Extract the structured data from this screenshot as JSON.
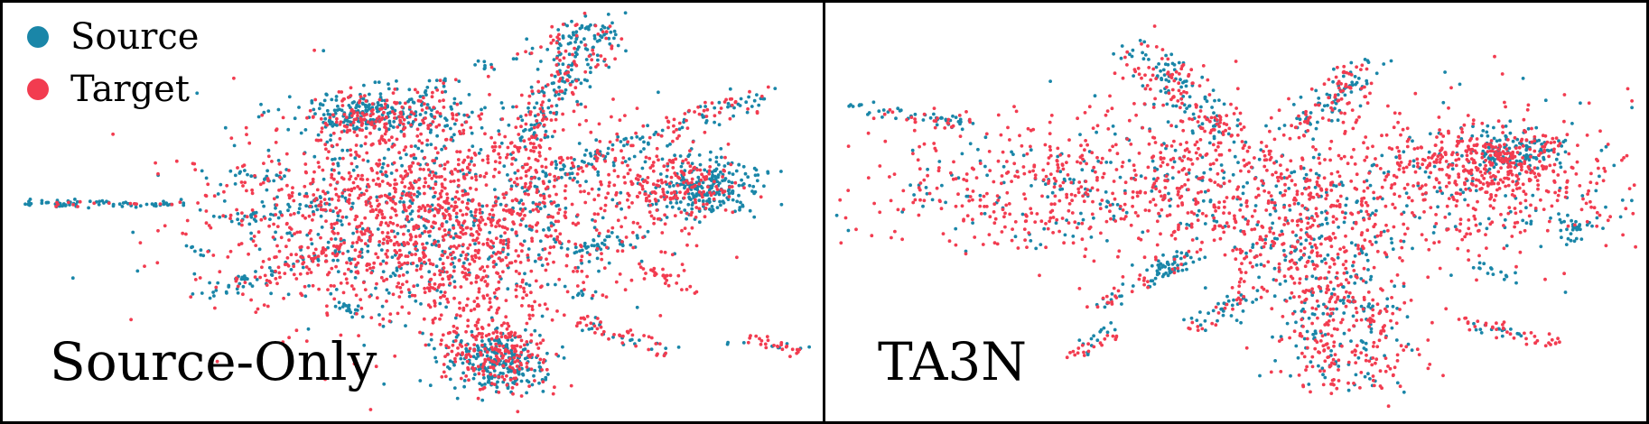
{
  "legend": [
    {
      "label": "Source",
      "color": "#1a86a8"
    },
    {
      "label": "Target",
      "color": "#f23c50"
    }
  ],
  "chart_data": [
    {
      "type": "scatter",
      "title": "Source-Only",
      "xlabel": "",
      "ylabel": "",
      "grid": false,
      "legend_placement": "top-left",
      "series": [
        {
          "name": "Source",
          "color": "#1a86a8"
        },
        {
          "name": "Target",
          "color": "#f23c50"
        }
      ],
      "clusters": [
        {
          "series": "Target",
          "shape": "ellipse",
          "cx": 0.52,
          "cy": 0.52,
          "rx": 0.25,
          "ry": 0.24,
          "n": 1300
        },
        {
          "series": "Source",
          "shape": "ellipse",
          "cx": 0.52,
          "cy": 0.52,
          "rx": 0.25,
          "ry": 0.24,
          "n": 500
        },
        {
          "series": "Source",
          "shape": "arm",
          "x1": 0.38,
          "y1": 0.3,
          "x2": 0.72,
          "y2": 0.05,
          "w": 0.01,
          "n": 60
        },
        {
          "series": "Target",
          "shape": "arm",
          "x1": 0.4,
          "y1": 0.3,
          "x2": 0.71,
          "y2": 0.06,
          "w": 0.006,
          "n": 20
        },
        {
          "series": "Source",
          "shape": "arm",
          "x1": 0.64,
          "y1": 0.32,
          "x2": 0.73,
          "y2": 0.05,
          "w": 0.018,
          "n": 150
        },
        {
          "series": "Target",
          "shape": "arm",
          "x1": 0.62,
          "y1": 0.38,
          "x2": 0.72,
          "y2": 0.06,
          "w": 0.02,
          "n": 120
        },
        {
          "series": "Source",
          "shape": "arm",
          "x1": 0.62,
          "y1": 0.45,
          "x2": 0.92,
          "y2": 0.22,
          "w": 0.015,
          "n": 110
        },
        {
          "series": "Target",
          "shape": "arm",
          "x1": 0.6,
          "y1": 0.47,
          "x2": 0.92,
          "y2": 0.22,
          "w": 0.018,
          "n": 90
        },
        {
          "series": "Source",
          "shape": "ellipse",
          "cx": 0.86,
          "cy": 0.44,
          "rx": 0.07,
          "ry": 0.07,
          "n": 250
        },
        {
          "series": "Target",
          "shape": "ellipse",
          "cx": 0.82,
          "cy": 0.44,
          "rx": 0.08,
          "ry": 0.08,
          "n": 180
        },
        {
          "series": "Source",
          "shape": "ellipse",
          "cx": 0.46,
          "cy": 0.26,
          "rx": 0.11,
          "ry": 0.06,
          "n": 220
        },
        {
          "series": "Target",
          "shape": "ellipse",
          "cx": 0.47,
          "cy": 0.27,
          "rx": 0.1,
          "ry": 0.06,
          "n": 150
        },
        {
          "series": "Source",
          "shape": "ellipse",
          "cx": 0.6,
          "cy": 0.86,
          "rx": 0.06,
          "ry": 0.07,
          "n": 240
        },
        {
          "series": "Target",
          "shape": "ellipse",
          "cx": 0.6,
          "cy": 0.84,
          "rx": 0.06,
          "ry": 0.08,
          "n": 170
        },
        {
          "series": "Target",
          "shape": "arm",
          "x1": 0.56,
          "y1": 0.6,
          "x2": 0.6,
          "y2": 0.9,
          "w": 0.03,
          "n": 120
        },
        {
          "series": "Source",
          "shape": "arm",
          "x1": 0.02,
          "y1": 0.48,
          "x2": 0.22,
          "y2": 0.48,
          "w": 0.004,
          "n": 70
        },
        {
          "series": "Target",
          "shape": "arm",
          "x1": 0.05,
          "y1": 0.48,
          "x2": 0.22,
          "y2": 0.48,
          "w": 0.004,
          "n": 15
        },
        {
          "series": "Source",
          "shape": "arm",
          "x1": 0.28,
          "y1": 0.53,
          "x2": 0.4,
          "y2": 0.47,
          "w": 0.01,
          "n": 40
        },
        {
          "series": "Source",
          "shape": "arm",
          "x1": 0.25,
          "y1": 0.7,
          "x2": 0.42,
          "y2": 0.58,
          "w": 0.01,
          "n": 50
        },
        {
          "series": "Target",
          "shape": "arm",
          "x1": 0.27,
          "y1": 0.69,
          "x2": 0.42,
          "y2": 0.58,
          "w": 0.012,
          "n": 40
        },
        {
          "series": "Source",
          "shape": "arm",
          "x1": 0.69,
          "y1": 0.6,
          "x2": 0.79,
          "y2": 0.56,
          "w": 0.01,
          "n": 40
        },
        {
          "series": "Target",
          "shape": "arm",
          "x1": 0.79,
          "y1": 0.64,
          "x2": 0.85,
          "y2": 0.69,
          "w": 0.008,
          "n": 25
        },
        {
          "series": "Target",
          "shape": "arm",
          "x1": 0.7,
          "y1": 0.75,
          "x2": 0.82,
          "y2": 0.84,
          "w": 0.01,
          "n": 40
        },
        {
          "series": "Source",
          "shape": "arm",
          "x1": 0.7,
          "y1": 0.76,
          "x2": 0.82,
          "y2": 0.84,
          "w": 0.01,
          "n": 20
        },
        {
          "series": "Target",
          "shape": "arm",
          "x1": 0.91,
          "y1": 0.8,
          "x2": 0.98,
          "y2": 0.84,
          "w": 0.006,
          "n": 25
        },
        {
          "series": "Source",
          "shape": "arm",
          "x1": 0.88,
          "y1": 0.81,
          "x2": 0.98,
          "y2": 0.83,
          "w": 0.005,
          "n": 10
        },
        {
          "series": "Source",
          "shape": "arm",
          "x1": 0.28,
          "y1": 0.4,
          "x2": 0.33,
          "y2": 0.42,
          "w": 0.006,
          "n": 15
        },
        {
          "series": "Source",
          "shape": "arm",
          "x1": 0.22,
          "y1": 0.58,
          "x2": 0.25,
          "y2": 0.6,
          "w": 0.005,
          "n": 8
        },
        {
          "series": "Source",
          "shape": "ellipse",
          "cx": 0.42,
          "cy": 0.73,
          "rx": 0.02,
          "ry": 0.015,
          "n": 15
        }
      ]
    },
    {
      "type": "scatter",
      "title": "TA3N",
      "xlabel": "",
      "ylabel": "",
      "grid": false,
      "series": [
        {
          "name": "Source",
          "color": "#1a86a8"
        },
        {
          "name": "Target",
          "color": "#f23c50"
        }
      ],
      "clusters": [
        {
          "series": "Target",
          "shape": "arm",
          "x1": 0.16,
          "y1": 0.44,
          "x2": 0.92,
          "y2": 0.43,
          "w": 0.09,
          "n": 1100
        },
        {
          "series": "Source",
          "shape": "arm",
          "x1": 0.16,
          "y1": 0.44,
          "x2": 0.92,
          "y2": 0.43,
          "w": 0.09,
          "n": 380
        },
        {
          "series": "Target",
          "shape": "ellipse",
          "cx": 0.82,
          "cy": 0.38,
          "rx": 0.09,
          "ry": 0.08,
          "n": 250
        },
        {
          "series": "Source",
          "shape": "ellipse",
          "cx": 0.84,
          "cy": 0.35,
          "rx": 0.06,
          "ry": 0.06,
          "n": 120
        },
        {
          "series": "Target",
          "shape": "arm",
          "x1": 0.57,
          "y1": 0.5,
          "x2": 0.65,
          "y2": 0.9,
          "w": 0.045,
          "n": 380
        },
        {
          "series": "Source",
          "shape": "arm",
          "x1": 0.57,
          "y1": 0.52,
          "x2": 0.65,
          "y2": 0.9,
          "w": 0.045,
          "n": 200
        },
        {
          "series": "Source",
          "shape": "arm",
          "x1": 0.38,
          "y1": 0.1,
          "x2": 0.48,
          "y2": 0.3,
          "w": 0.02,
          "n": 90
        },
        {
          "series": "Target",
          "shape": "arm",
          "x1": 0.38,
          "y1": 0.12,
          "x2": 0.5,
          "y2": 0.34,
          "w": 0.025,
          "n": 110
        },
        {
          "series": "Source",
          "shape": "arm",
          "x1": 0.58,
          "y1": 0.3,
          "x2": 0.66,
          "y2": 0.15,
          "w": 0.015,
          "n": 70
        },
        {
          "series": "Target",
          "shape": "arm",
          "x1": 0.58,
          "y1": 0.3,
          "x2": 0.66,
          "y2": 0.15,
          "w": 0.015,
          "n": 60
        },
        {
          "series": "Source",
          "shape": "arm",
          "x1": 0.03,
          "y1": 0.24,
          "x2": 0.18,
          "y2": 0.29,
          "w": 0.007,
          "n": 45
        },
        {
          "series": "Target",
          "shape": "arm",
          "x1": 0.06,
          "y1": 0.26,
          "x2": 0.18,
          "y2": 0.3,
          "w": 0.008,
          "n": 20
        },
        {
          "series": "Source",
          "shape": "arm",
          "x1": 0.34,
          "y1": 0.72,
          "x2": 0.46,
          "y2": 0.6,
          "w": 0.01,
          "n": 40
        },
        {
          "series": "Target",
          "shape": "arm",
          "x1": 0.34,
          "y1": 0.72,
          "x2": 0.46,
          "y2": 0.6,
          "w": 0.01,
          "n": 25
        },
        {
          "series": "Source",
          "shape": "arm",
          "x1": 0.44,
          "y1": 0.6,
          "x2": 0.4,
          "y2": 0.64,
          "w": 0.01,
          "n": 30
        },
        {
          "series": "Source",
          "shape": "arm",
          "x1": 0.44,
          "y1": 0.78,
          "x2": 0.52,
          "y2": 0.7,
          "w": 0.01,
          "n": 30
        },
        {
          "series": "Target",
          "shape": "arm",
          "x1": 0.44,
          "y1": 0.78,
          "x2": 0.52,
          "y2": 0.7,
          "w": 0.01,
          "n": 20
        },
        {
          "series": "Source",
          "shape": "arm",
          "x1": 0.29,
          "y1": 0.84,
          "x2": 0.36,
          "y2": 0.78,
          "w": 0.008,
          "n": 15
        },
        {
          "series": "Target",
          "shape": "arm",
          "x1": 0.29,
          "y1": 0.85,
          "x2": 0.36,
          "y2": 0.79,
          "w": 0.008,
          "n": 20
        },
        {
          "series": "Target",
          "shape": "arm",
          "x1": 0.78,
          "y1": 0.76,
          "x2": 0.9,
          "y2": 0.82,
          "w": 0.01,
          "n": 40
        },
        {
          "series": "Source",
          "shape": "arm",
          "x1": 0.78,
          "y1": 0.77,
          "x2": 0.86,
          "y2": 0.8,
          "w": 0.008,
          "n": 15
        },
        {
          "series": "Source",
          "shape": "arm",
          "x1": 0.8,
          "y1": 0.63,
          "x2": 0.84,
          "y2": 0.66,
          "w": 0.006,
          "n": 15
        },
        {
          "series": "Source",
          "shape": "ellipse",
          "cx": 0.91,
          "cy": 0.54,
          "rx": 0.02,
          "ry": 0.03,
          "n": 30
        }
      ]
    }
  ]
}
